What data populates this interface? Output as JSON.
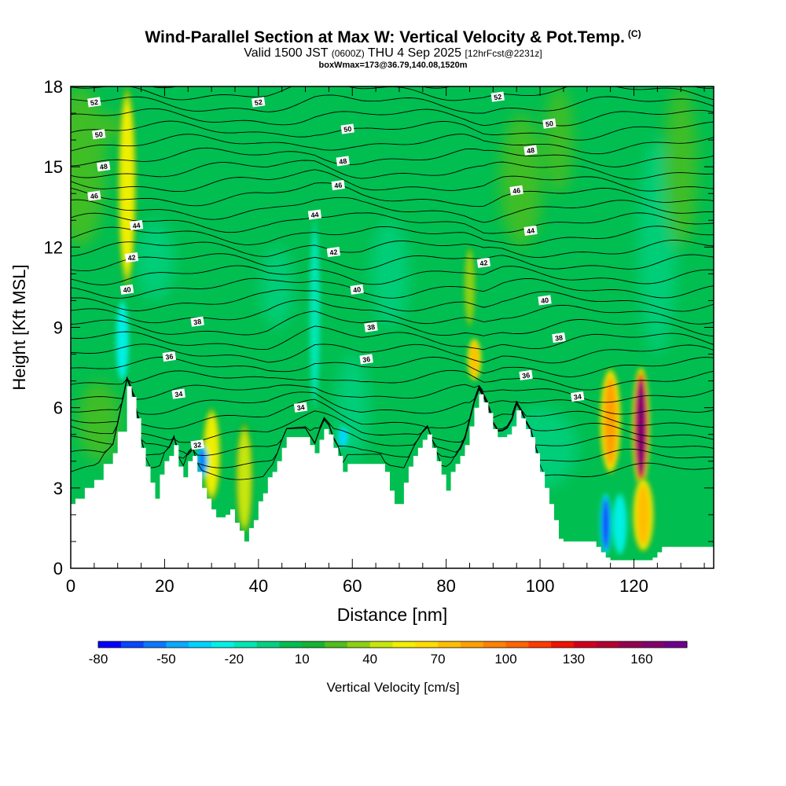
{
  "title": {
    "main": "Wind-Parallel Section at Max W: Vertical Velocity & Pot.Temp.",
    "copyright": "(C)",
    "valid_prefix": "Valid 1500 JST",
    "valid_utc": "(0600Z)",
    "valid_date": "THU 4 Sep 2025",
    "forecast": "[12hrFcst@2231z]",
    "box_info": "boxWmax=173@36.79,140.08,1520m"
  },
  "chart_data": {
    "type": "heatmap",
    "xlabel": "Distance [nm]",
    "ylabel": "Height [Kft MSL]",
    "xlim": [
      0,
      137
    ],
    "ylim": [
      0,
      18
    ],
    "x_ticks": [
      0,
      20,
      40,
      60,
      80,
      100,
      120
    ],
    "y_ticks": [
      0,
      3,
      6,
      9,
      12,
      15,
      18
    ],
    "colorbar": {
      "label": "Vertical Velocity [cm/s]",
      "tick_labels": [
        "-80",
        "-50",
        "-20",
        "10",
        "40",
        "70",
        "100",
        "130",
        "160"
      ],
      "levels": [
        -80,
        -70,
        -60,
        -50,
        -40,
        -30,
        -20,
        -10,
        0,
        10,
        20,
        30,
        40,
        50,
        60,
        70,
        80,
        90,
        100,
        110,
        120,
        130,
        140,
        150,
        160,
        170,
        180
      ],
      "colors": [
        "#0000ff",
        "#0a46ff",
        "#0a78ff",
        "#0aaaff",
        "#00d2ff",
        "#00f0e6",
        "#00e6b4",
        "#00d282",
        "#00be50",
        "#14b432",
        "#50be1e",
        "#8cd214",
        "#c8e60a",
        "#f0f000",
        "#ffdc00",
        "#ffbe00",
        "#ffa000",
        "#ff8200",
        "#ff6400",
        "#ff3c00",
        "#f01400",
        "#d2001e",
        "#b40032",
        "#960050",
        "#82006e",
        "#6e008c"
      ]
    },
    "terrain": {
      "x": [
        0,
        1,
        3,
        5,
        7,
        9,
        10,
        12,
        13,
        14,
        15,
        16,
        17,
        18,
        19,
        20,
        21,
        22,
        23,
        24,
        25,
        26,
        27,
        28,
        29,
        30,
        31,
        32,
        33,
        34,
        35,
        36,
        37,
        38,
        39,
        40,
        41,
        42,
        43,
        44,
        45,
        46,
        47,
        48,
        49,
        50,
        51,
        52,
        53,
        54,
        55,
        56,
        57,
        58,
        59,
        60,
        61,
        62,
        63,
        64,
        65,
        66,
        67,
        68,
        69,
        70,
        71,
        72,
        73,
        74,
        75,
        76,
        77,
        78,
        79,
        80,
        81,
        82,
        83,
        84,
        85,
        86,
        87,
        88,
        89,
        90,
        91,
        92,
        93,
        94,
        95,
        96,
        97,
        98,
        99,
        100,
        101,
        102,
        103,
        104,
        105,
        106,
        107,
        108,
        109,
        110,
        111,
        112,
        113,
        114,
        115,
        116,
        117,
        118,
        119,
        120,
        121,
        122,
        123,
        124,
        125,
        126,
        127,
        128,
        129,
        130,
        131,
        132,
        133,
        134,
        135,
        136,
        137
      ],
      "h": [
        2.4,
        2.6,
        3.0,
        3.3,
        3.9,
        4.3,
        5.1,
        6.8,
        6.4,
        5.6,
        4.5,
        3.8,
        3.2,
        2.6,
        3.5,
        4.0,
        4.2,
        4.6,
        3.8,
        3.4,
        4.0,
        4.2,
        3.6,
        3.0,
        2.6,
        2.2,
        1.9,
        1.9,
        2.0,
        2.2,
        1.7,
        1.4,
        1.0,
        1.5,
        1.8,
        2.5,
        2.8,
        3.4,
        3.6,
        4.0,
        4.5,
        4.9,
        4.9,
        4.9,
        4.9,
        4.9,
        4.6,
        4.3,
        4.8,
        5.2,
        5.0,
        4.5,
        4.2,
        3.6,
        3.9,
        3.9,
        3.9,
        3.9,
        3.9,
        3.9,
        3.9,
        3.9,
        3.6,
        2.9,
        2.4,
        2.4,
        3.2,
        3.8,
        4.2,
        4.5,
        4.8,
        5.0,
        4.5,
        4.0,
        3.5,
        2.9,
        3.6,
        3.9,
        4.2,
        4.6,
        5.3,
        6.0,
        6.5,
        6.2,
        5.8,
        5.2,
        4.9,
        4.9,
        5.0,
        5.3,
        5.9,
        5.6,
        5.2,
        4.9,
        4.3,
        3.6,
        3.0,
        2.4,
        1.8,
        1.1,
        1.0,
        1.0,
        1.0,
        1.0,
        1.0,
        1.0,
        1.0,
        0.8,
        0.6,
        0.4,
        0.3,
        0.3,
        0.3,
        0.3,
        0.3,
        0.3,
        0.3,
        0.3,
        0.3,
        0.4,
        0.6,
        0.8,
        0.8,
        0.8,
        0.8,
        0.8,
        0.8,
        0.8,
        0.8,
        0.8,
        0.8,
        0.8,
        0.8,
        0.8
      ]
    },
    "theta_contour_labels": [
      {
        "value": "52",
        "x": 5,
        "y": 17.4
      },
      {
        "value": "52",
        "x": 40,
        "y": 17.4
      },
      {
        "value": "52",
        "x": 91,
        "y": 17.6
      },
      {
        "value": "50",
        "x": 6,
        "y": 16.2
      },
      {
        "value": "50",
        "x": 59,
        "y": 16.4
      },
      {
        "value": "50",
        "x": 102,
        "y": 16.6
      },
      {
        "value": "48",
        "x": 7,
        "y": 15.0
      },
      {
        "value": "48",
        "x": 58,
        "y": 15.2
      },
      {
        "value": "48",
        "x": 98,
        "y": 15.6
      },
      {
        "value": "46",
        "x": 5,
        "y": 13.9
      },
      {
        "value": "46",
        "x": 57,
        "y": 14.3
      },
      {
        "value": "46",
        "x": 95,
        "y": 14.1
      },
      {
        "value": "44",
        "x": 14,
        "y": 12.8
      },
      {
        "value": "44",
        "x": 52,
        "y": 13.2
      },
      {
        "value": "44",
        "x": 98,
        "y": 12.6
      },
      {
        "value": "42",
        "x": 13,
        "y": 11.6
      },
      {
        "value": "42",
        "x": 56,
        "y": 11.8
      },
      {
        "value": "42",
        "x": 88,
        "y": 11.4
      },
      {
        "value": "40",
        "x": 12,
        "y": 10.4
      },
      {
        "value": "40",
        "x": 61,
        "y": 10.4
      },
      {
        "value": "40",
        "x": 101,
        "y": 10.0
      },
      {
        "value": "38",
        "x": 27,
        "y": 9.2
      },
      {
        "value": "38",
        "x": 64,
        "y": 9.0
      },
      {
        "value": "38",
        "x": 104,
        "y": 8.6
      },
      {
        "value": "36",
        "x": 21,
        "y": 7.9
      },
      {
        "value": "36",
        "x": 63,
        "y": 7.8
      },
      {
        "value": "36",
        "x": 97,
        "y": 7.2
      },
      {
        "value": "34",
        "x": 23,
        "y": 6.5
      },
      {
        "value": "34",
        "x": 49,
        "y": 6.0
      },
      {
        "value": "34",
        "x": 108,
        "y": 6.4
      },
      {
        "value": "32",
        "x": 27,
        "y": 4.6
      }
    ],
    "velocity_features": [
      {
        "x": 12,
        "y0": 10.5,
        "y1": 18,
        "w": 1.3,
        "value": 55
      },
      {
        "x": 11,
        "y0": 7.0,
        "y1": 10.0,
        "w": 0.9,
        "value": -25
      },
      {
        "x": 30,
        "y0": 2.5,
        "y1": 6.0,
        "w": 1.3,
        "value": 55
      },
      {
        "x": 28,
        "y0": 3.4,
        "y1": 4.6,
        "w": 0.8,
        "value": -60
      },
      {
        "x": 37,
        "y0": 1.2,
        "y1": 5.5,
        "w": 1.3,
        "value": 45
      },
      {
        "x": 52,
        "y0": 6.0,
        "y1": 13.0,
        "w": 0.8,
        "value": -15
      },
      {
        "x": 58,
        "y0": 4.5,
        "y1": 5.3,
        "w": 0.8,
        "value": -40
      },
      {
        "x": 86,
        "y0": 7.0,
        "y1": 8.6,
        "w": 1.0,
        "value": 75
      },
      {
        "x": 85,
        "y0": 9.0,
        "y1": 12.0,
        "w": 0.8,
        "value": 30
      },
      {
        "x": 92,
        "y0": 2.5,
        "y1": 4.5,
        "w": 2.0,
        "value": 35
      },
      {
        "x": 115,
        "y0": 3.5,
        "y1": 7.5,
        "w": 1.5,
        "value": 85
      },
      {
        "x": 114,
        "y0": 0.5,
        "y1": 2.8,
        "w": 0.8,
        "value": -65
      },
      {
        "x": 117,
        "y0": 0.5,
        "y1": 2.8,
        "w": 1.0,
        "value": -25
      },
      {
        "x": 121.5,
        "y0": 3.0,
        "y1": 7.5,
        "w": 1.2,
        "value": 160
      },
      {
        "x": 122,
        "y0": 0.6,
        "y1": 3.4,
        "w": 1.5,
        "value": 75
      }
    ]
  }
}
